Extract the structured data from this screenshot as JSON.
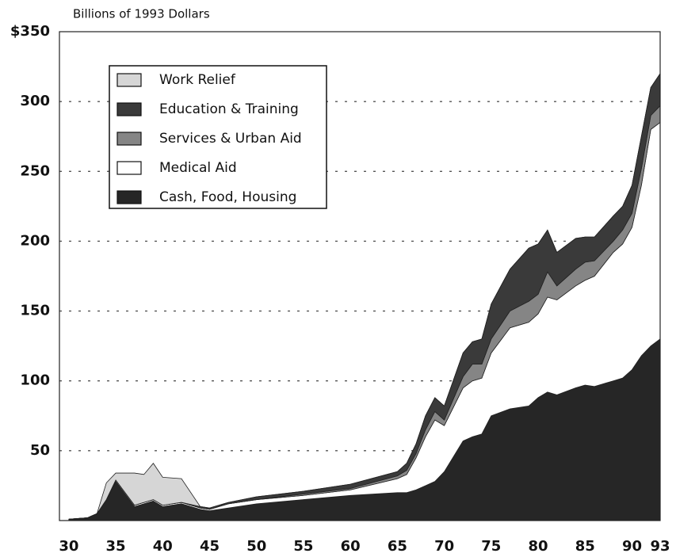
{
  "chart_data": {
    "type": "stacked-area",
    "y_axis_label": "Billions of 1993 Dollars",
    "x": [
      30,
      32,
      33,
      34,
      35,
      37,
      38,
      39,
      40,
      42,
      44,
      45,
      47,
      50,
      55,
      60,
      65,
      66,
      67,
      68,
      69,
      70,
      72,
      73,
      74,
      75,
      77,
      79,
      80,
      81,
      82,
      84,
      85,
      86,
      88,
      89,
      90,
      91,
      92,
      93
    ],
    "series": [
      {
        "name": "Cash, Food, Housing",
        "color": "#262626",
        "values": [
          1,
          2,
          5,
          15,
          28,
          10,
          12,
          14,
          10,
          12,
          8,
          7,
          9,
          12,
          15,
          18,
          20,
          20,
          22,
          25,
          28,
          35,
          57,
          60,
          62,
          75,
          80,
          82,
          88,
          92,
          90,
          95,
          97,
          96,
          100,
          102,
          108,
          118,
          125,
          130
        ]
      },
      {
        "name": "Medical Aid",
        "color": "#ffffff",
        "values": [
          0,
          0,
          0,
          0,
          1,
          1,
          1,
          1,
          1,
          1,
          1,
          1,
          3,
          3,
          3,
          4,
          10,
          13,
          23,
          35,
          44,
          33,
          38,
          40,
          40,
          45,
          58,
          60,
          60,
          68,
          68,
          73,
          75,
          79,
          92,
          96,
          102,
          122,
          155,
          155
        ]
      },
      {
        "name": "Services & Urban Aid",
        "color": "#858585",
        "values": [
          0,
          0,
          0,
          0,
          0,
          0,
          0,
          0,
          0,
          0,
          0,
          0,
          0,
          0,
          1,
          1,
          2,
          3,
          3,
          5,
          6,
          4,
          8,
          12,
          10,
          10,
          12,
          15,
          14,
          18,
          10,
          12,
          13,
          11,
          8,
          10,
          10,
          12,
          10,
          12
        ]
      },
      {
        "name": "Education & Training",
        "color": "#3a3a3a",
        "values": [
          0,
          0,
          0,
          0,
          0,
          0,
          0,
          0,
          0,
          0,
          1,
          1,
          1,
          2,
          2,
          3,
          3,
          5,
          7,
          10,
          10,
          10,
          17,
          16,
          18,
          25,
          30,
          38,
          36,
          30,
          24,
          22,
          18,
          17,
          18,
          17,
          20,
          23,
          20,
          23
        ]
      },
      {
        "name": "Work Relief",
        "color": "#d6d6d6",
        "values": [
          0,
          0,
          0,
          12,
          5,
          23,
          20,
          26,
          20,
          17,
          0,
          0,
          0,
          0,
          0,
          0,
          0,
          0,
          0,
          0,
          0,
          0,
          0,
          0,
          0,
          0,
          0,
          0,
          0,
          0,
          0,
          0,
          0,
          0,
          0,
          0,
          0,
          0,
          0,
          0
        ]
      }
    ],
    "xlim": [
      29,
      93
    ],
    "ylim": [
      0,
      350
    ],
    "xticks": [
      30,
      35,
      40,
      45,
      50,
      55,
      60,
      65,
      70,
      75,
      80,
      85,
      90,
      93
    ],
    "yticks": [
      50,
      100,
      150,
      200,
      250,
      300,
      {
        "value": 350,
        "label": "$350"
      }
    ],
    "grid": true,
    "legend": "upper left"
  }
}
